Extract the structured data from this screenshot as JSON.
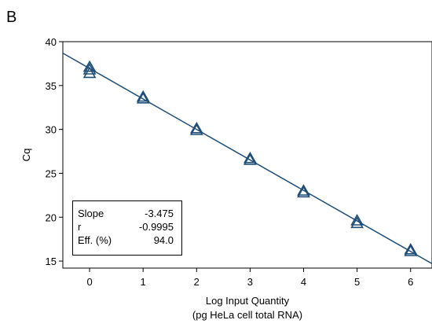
{
  "panel_label": "B",
  "chart_data": {
    "type": "scatter",
    "title": "",
    "xlabel_line1": "Log Input Quantity",
    "xlabel_line2": "(pg HeLa cell total RNA)",
    "ylabel": "Cq",
    "xlim": [
      -0.5,
      6.4
    ],
    "ylim": [
      14.2,
      40
    ],
    "x_ticks": [
      "0",
      "1",
      "2",
      "3",
      "4",
      "5",
      "6"
    ],
    "y_ticks": [
      "15",
      "20",
      "25",
      "30",
      "35",
      "40"
    ],
    "marker": "triangle",
    "color": "#1f4e79",
    "series": [
      {
        "points": [
          {
            "x": 0,
            "y": 37.1
          },
          {
            "x": 0,
            "y": 36.8
          },
          {
            "x": 0,
            "y": 36.4
          },
          {
            "x": 1,
            "y": 33.7
          },
          {
            "x": 1,
            "y": 33.5
          },
          {
            "x": 2,
            "y": 30.1
          },
          {
            "x": 2,
            "y": 29.9
          },
          {
            "x": 3,
            "y": 26.7
          },
          {
            "x": 3,
            "y": 26.5
          },
          {
            "x": 4,
            "y": 23.0
          },
          {
            "x": 4,
            "y": 22.8
          },
          {
            "x": 5,
            "y": 19.6
          },
          {
            "x": 5,
            "y": 19.3
          },
          {
            "x": 6,
            "y": 16.3
          },
          {
            "x": 6,
            "y": 16.1
          }
        ]
      }
    ],
    "fit_line": {
      "slope": -3.475,
      "intercept": 36.95
    },
    "stats": [
      {
        "label": "Slope",
        "value": "-3.475"
      },
      {
        "label": "r",
        "value": "-0.9995"
      },
      {
        "label": "Eff. (%)",
        "value": "94.0"
      }
    ]
  }
}
